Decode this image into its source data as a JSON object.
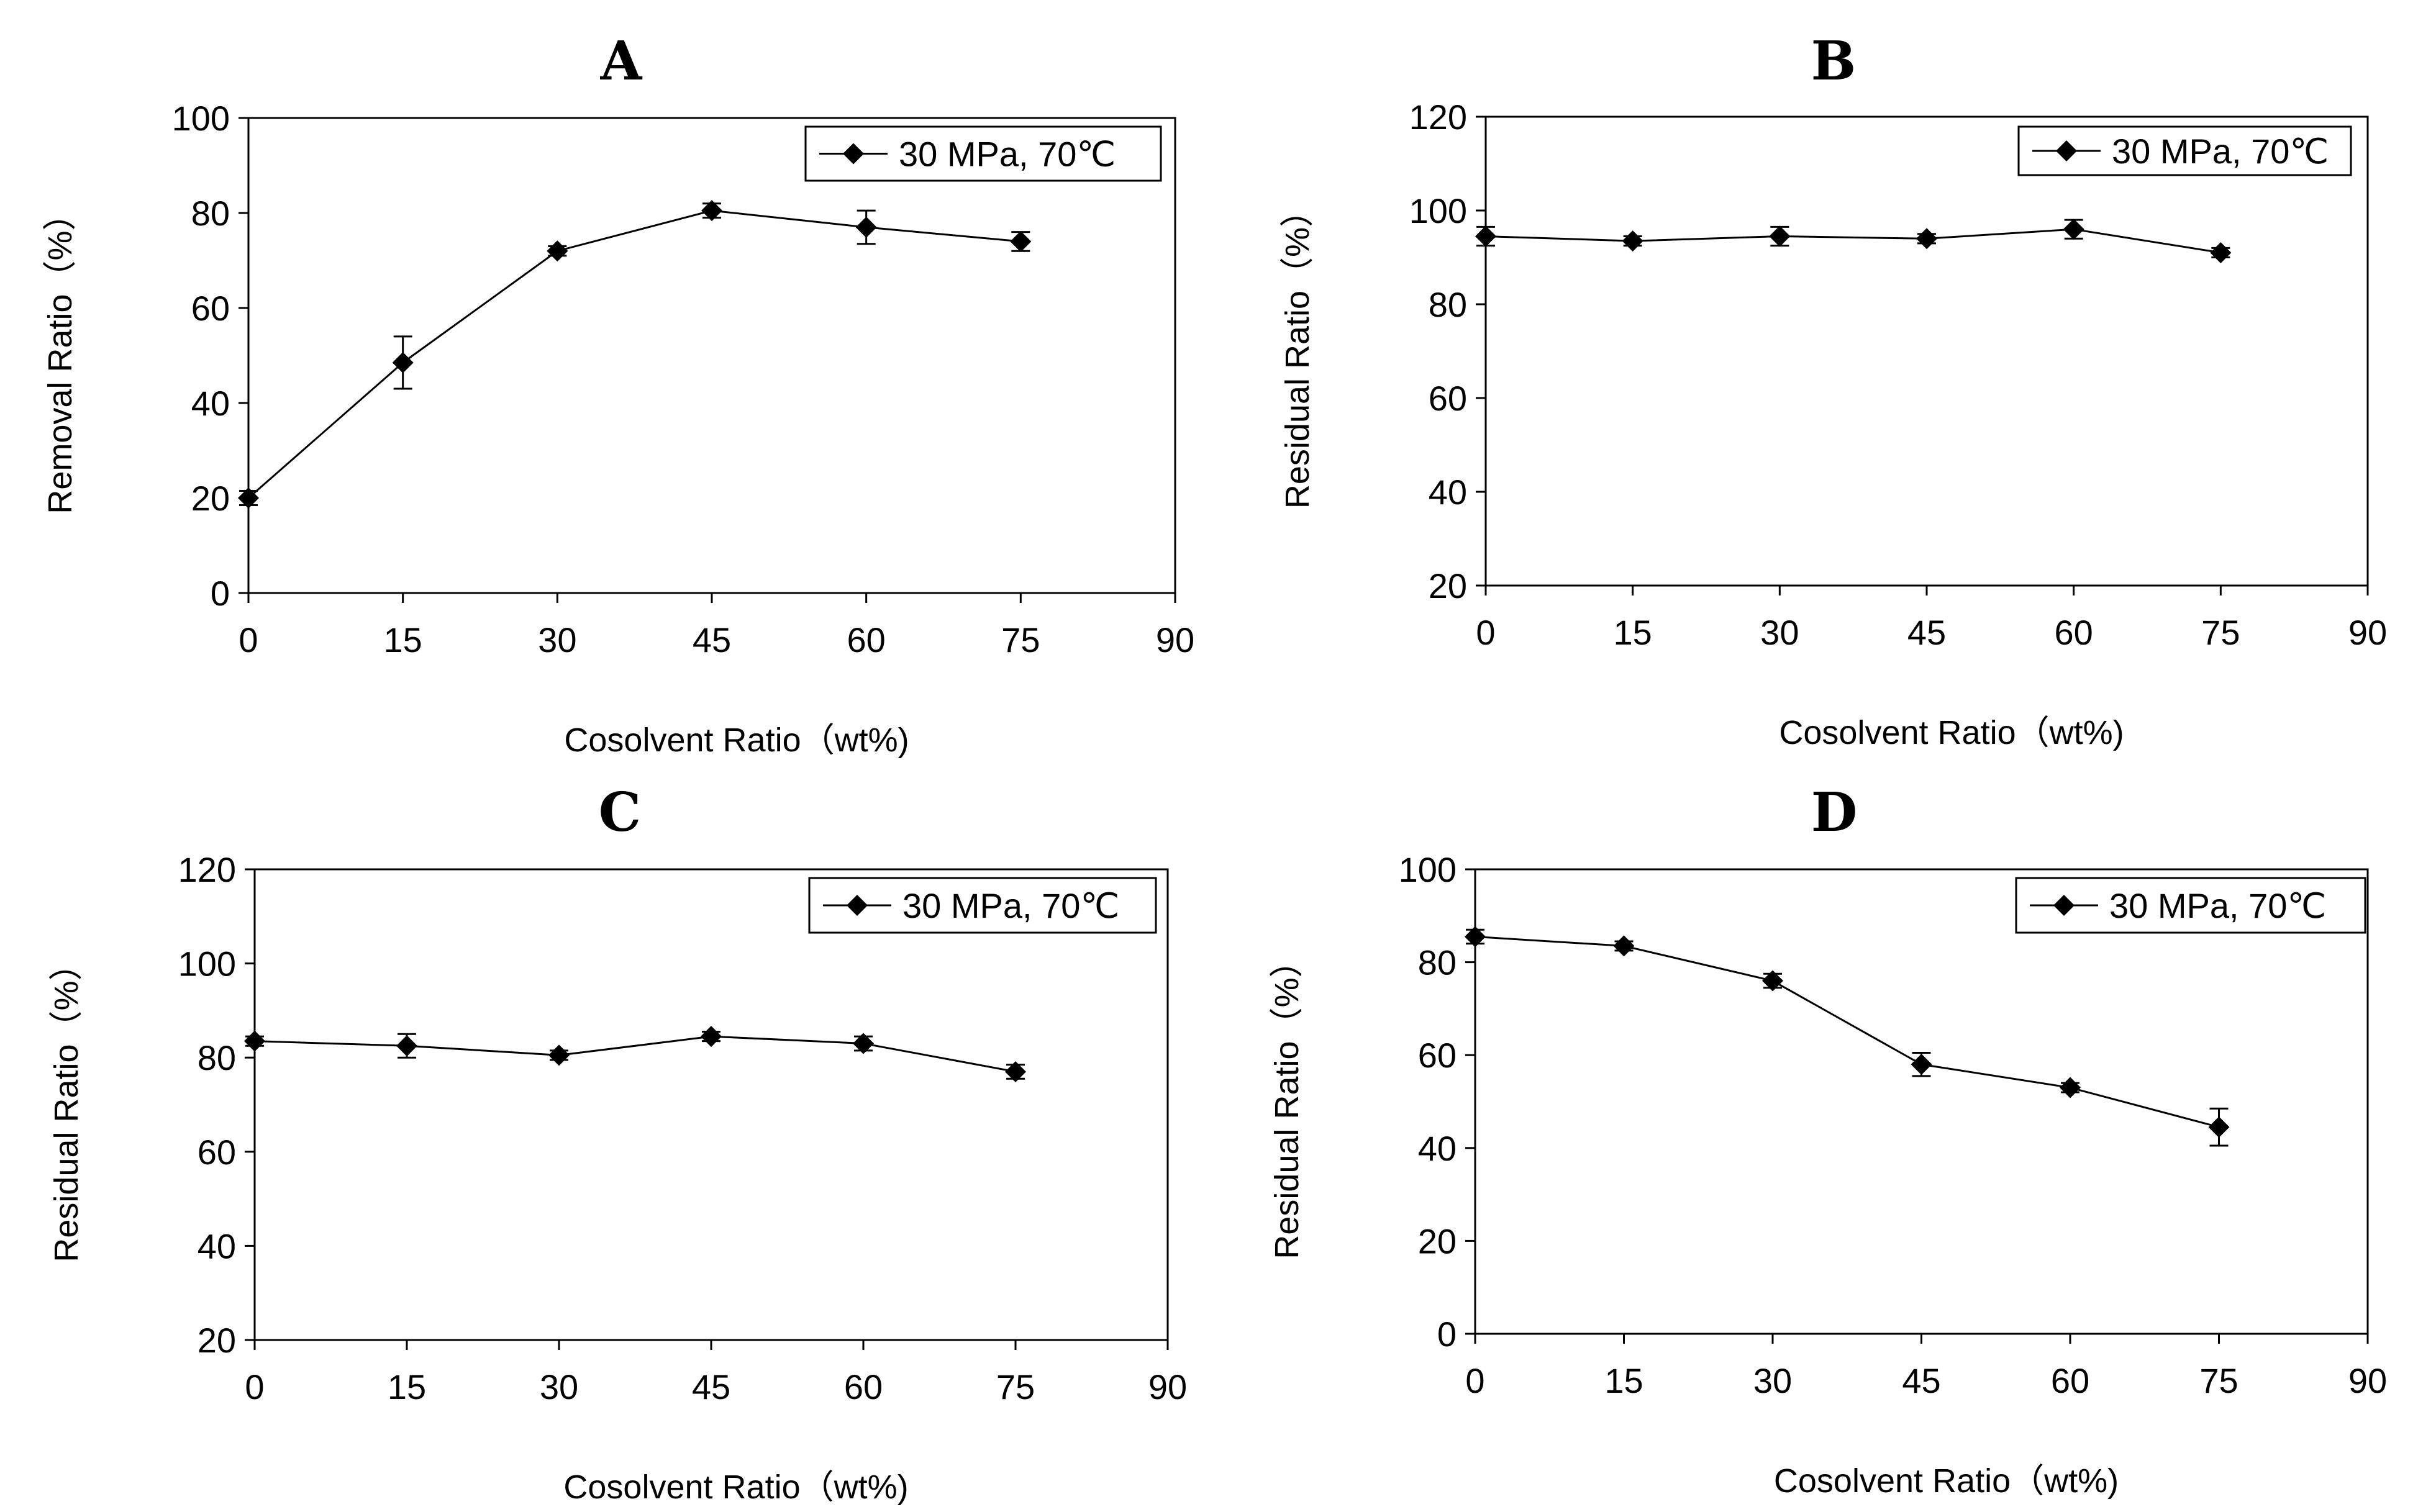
{
  "figure": {
    "chart_data": [
      {
        "type": "line",
        "panel": "A",
        "title": "A",
        "xlabel": "Cosolvent Ratio（wt%)",
        "ylabel": "Removal Ratio（%）",
        "xlim": [
          0,
          90
        ],
        "ylim": [
          0,
          100
        ],
        "xticks": [
          "0",
          "15",
          "30",
          "45",
          "60",
          "75",
          "90"
        ],
        "yticks": [
          "0",
          "20",
          "40",
          "60",
          "80",
          "100"
        ],
        "legend_position": "top-right",
        "series": [
          {
            "name": "30 MPa, 70℃",
            "x": [
              0,
              15,
              30,
              45,
              60,
              75
            ],
            "y": [
              20,
              48.5,
              72,
              80.5,
              77,
              74
            ],
            "error": [
              1.5,
              5.5,
              1,
              1.5,
              3.5,
              2
            ]
          }
        ]
      },
      {
        "type": "line",
        "panel": "B",
        "title": "B",
        "xlabel": "Cosolvent Ratio（wt%)",
        "ylabel": "Residual Ratio（%）",
        "xlim": [
          0,
          90
        ],
        "ylim": [
          20,
          120
        ],
        "xticks": [
          "0",
          "15",
          "30",
          "45",
          "60",
          "75",
          "90"
        ],
        "yticks": [
          "20",
          "40",
          "60",
          "80",
          "100",
          "120"
        ],
        "legend_position": "top-right",
        "series": [
          {
            "name": "30 MPa, 70℃",
            "x": [
              0,
              15,
              30,
              45,
              60,
              75
            ],
            "y": [
              94.5,
              93.5,
              94.5,
              94,
              96,
              91
            ],
            "error": [
              2,
              1,
              2,
              1,
              2,
              1
            ]
          }
        ]
      },
      {
        "type": "line",
        "panel": "C",
        "title": "C",
        "xlabel": "Cosolvent Ratio（wt%)",
        "ylabel": "Residual Ratio（%）",
        "xlim": [
          0,
          90
        ],
        "ylim": [
          20,
          120
        ],
        "xticks": [
          "0",
          "15",
          "30",
          "45",
          "60",
          "75",
          "90"
        ],
        "yticks": [
          "20",
          "40",
          "60",
          "80",
          "100",
          "120"
        ],
        "legend_position": "top-right",
        "series": [
          {
            "name": "30 MPa, 70℃",
            "x": [
              0,
              15,
              30,
              45,
              60,
              75
            ],
            "y": [
              83.5,
              82.5,
              80.5,
              84.5,
              83,
              77
            ],
            "error": [
              1,
              2.5,
              1,
              1,
              1.5,
              1.5
            ]
          }
        ]
      },
      {
        "type": "line",
        "panel": "D",
        "title": "D",
        "xlabel": "Cosolvent Ratio（wt%)",
        "ylabel": "Residual Ratio（%）",
        "xlim": [
          0,
          90
        ],
        "ylim": [
          0,
          100
        ],
        "xticks": [
          "0",
          "15",
          "30",
          "45",
          "60",
          "75",
          "90"
        ],
        "yticks": [
          "0",
          "20",
          "40",
          "60",
          "80",
          "100"
        ],
        "legend_position": "top-right",
        "series": [
          {
            "name": "30 MPa, 70℃",
            "x": [
              0,
              15,
              30,
              45,
              60,
              75
            ],
            "y": [
              85.5,
              83.5,
              76,
              58,
              53,
              44.5
            ],
            "error": [
              1.5,
              1,
              1.5,
              2.5,
              1,
              4
            ]
          }
        ]
      }
    ]
  }
}
